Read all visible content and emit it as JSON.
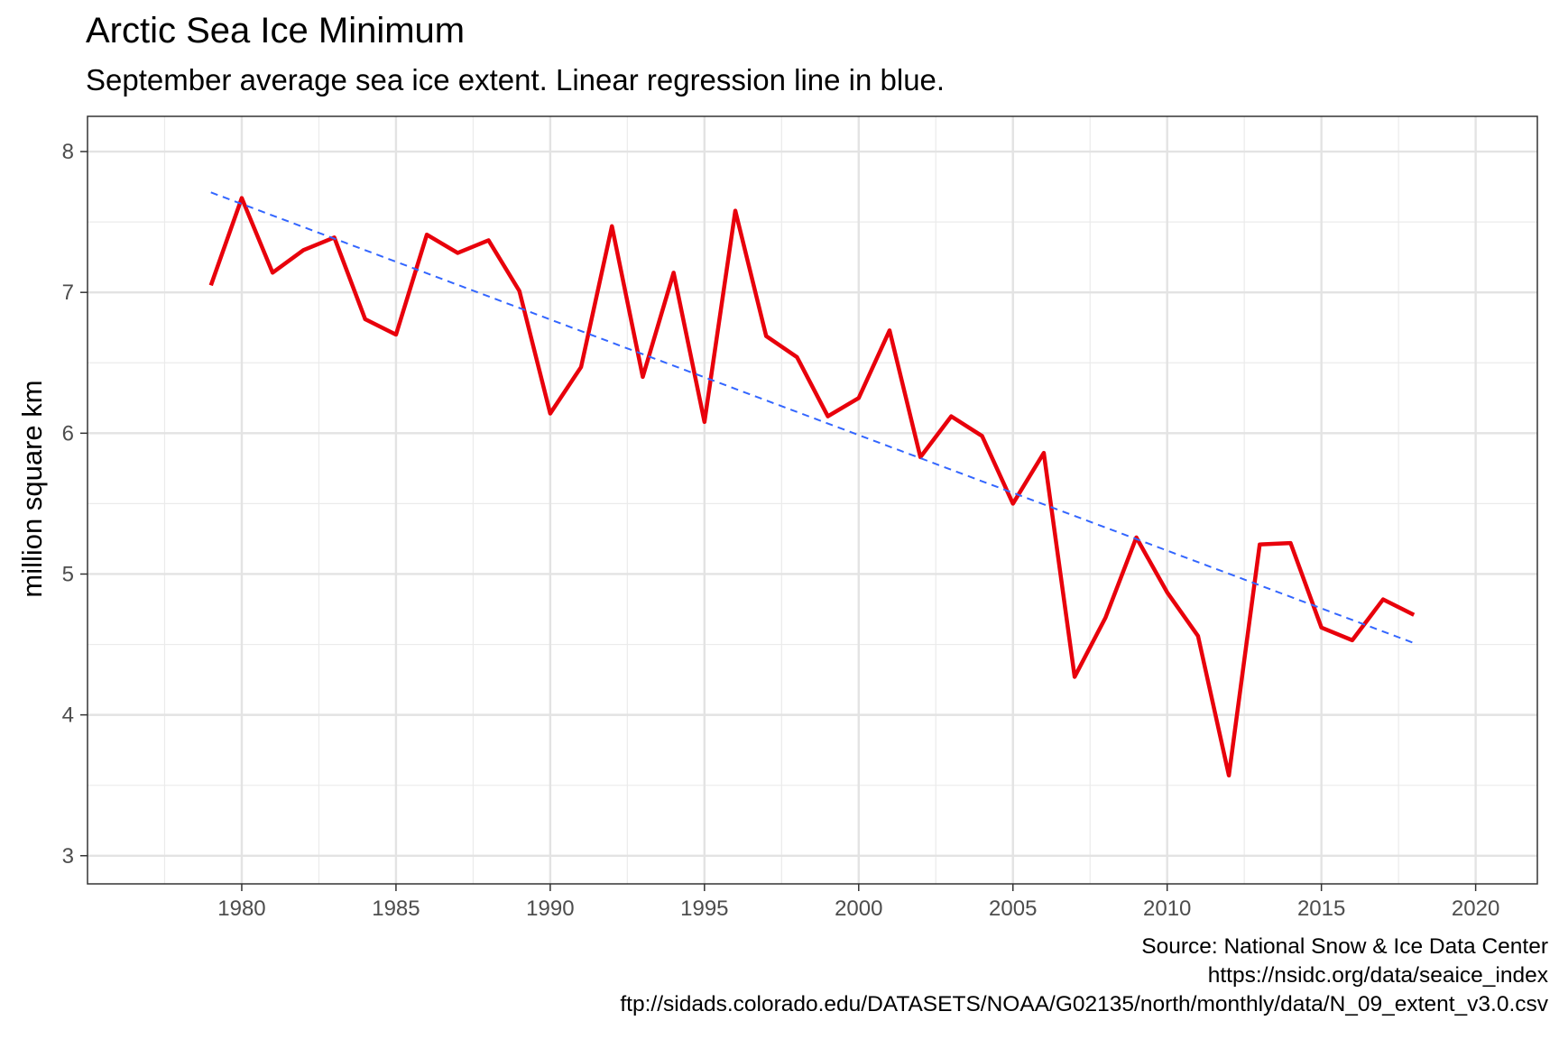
{
  "chart_data": {
    "type": "line",
    "title": "Arctic Sea Ice Minimum",
    "subtitle": "September average sea ice extent. Linear regression line in blue.",
    "xlabel": "",
    "ylabel": "million square km",
    "xlim": [
      1975,
      2022
    ],
    "ylim": [
      2.8,
      8.25
    ],
    "x_ticks": [
      1980,
      1985,
      1990,
      1995,
      2000,
      2005,
      2010,
      2015,
      2020
    ],
    "y_ticks": [
      3,
      4,
      5,
      6,
      7,
      8
    ],
    "grid": true,
    "series": [
      {
        "style": "solid",
        "color": "#e8000b",
        "x": [
          1979,
          1980,
          1981,
          1982,
          1983,
          1984,
          1985,
          1986,
          1987,
          1988,
          1989,
          1990,
          1991,
          1992,
          1993,
          1994,
          1995,
          1996,
          1997,
          1998,
          1999,
          2000,
          2001,
          2002,
          2003,
          2004,
          2005,
          2006,
          2007,
          2008,
          2009,
          2010,
          2011,
          2012,
          2013,
          2014,
          2015,
          2016,
          2017,
          2018
        ],
        "values": [
          7.05,
          7.67,
          7.14,
          7.3,
          7.39,
          6.81,
          6.7,
          7.41,
          7.28,
          7.37,
          7.01,
          6.14,
          6.47,
          7.47,
          6.4,
          7.14,
          6.08,
          7.58,
          6.69,
          6.54,
          6.12,
          6.25,
          6.73,
          5.83,
          6.12,
          5.98,
          5.5,
          5.86,
          4.27,
          4.69,
          5.26,
          4.87,
          4.56,
          3.57,
          5.21,
          5.22,
          4.62,
          4.53,
          4.82,
          4.71
        ]
      },
      {
        "style": "dashed",
        "color": "#3366ff",
        "x": [
          1979,
          2018
        ],
        "values": [
          7.71,
          4.51
        ]
      }
    ],
    "caption": [
      "Source: National Snow & Ice Data Center",
      "https://nsidc.org/data/seaice_index",
      "ftp://sidads.colorado.edu/DATASETS/NOAA/G02135/north/monthly/data/N_09_extent_v3.0.csv"
    ]
  }
}
